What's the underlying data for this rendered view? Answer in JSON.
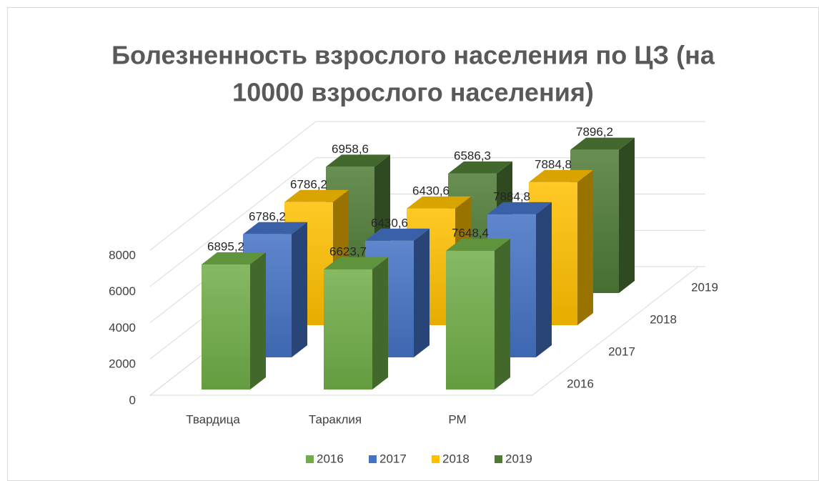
{
  "chart_data": {
    "type": "bar3d",
    "title": [
      "Болезненность взрослого населения по ЦЗ (на",
      "10000 взрослого населения)"
    ],
    "categories": [
      "Твардица",
      "Тараклия",
      "РМ"
    ],
    "series": [
      {
        "name": "2016",
        "color": "#70ad47",
        "values": [
          6895.2,
          6623.7,
          7648.4
        ],
        "value_labels": [
          "6895,2",
          "6623,7",
          "7648,4"
        ]
      },
      {
        "name": "2017",
        "color": "#4472c4",
        "values": [
          6786.2,
          6430.6,
          7884.8
        ],
        "value_labels": [
          "6786,2",
          "6430,6",
          "7884,8"
        ]
      },
      {
        "name": "2018",
        "color": "#ffc000",
        "values": [
          6786.2,
          6430.6,
          7884.8
        ],
        "value_labels": [
          "6786,2",
          "6430,6",
          "7884,8"
        ]
      },
      {
        "name": "2019",
        "color": "#4e7a35",
        "values": [
          6958.6,
          6586.3,
          7896.2
        ],
        "value_labels": [
          "6958,6",
          "6586,3",
          "7896,2"
        ]
      }
    ],
    "ylim": [
      0,
      8000
    ],
    "yticks": [
      0,
      2000,
      4000,
      6000,
      8000
    ],
    "grid": true,
    "legend": "bottom"
  }
}
